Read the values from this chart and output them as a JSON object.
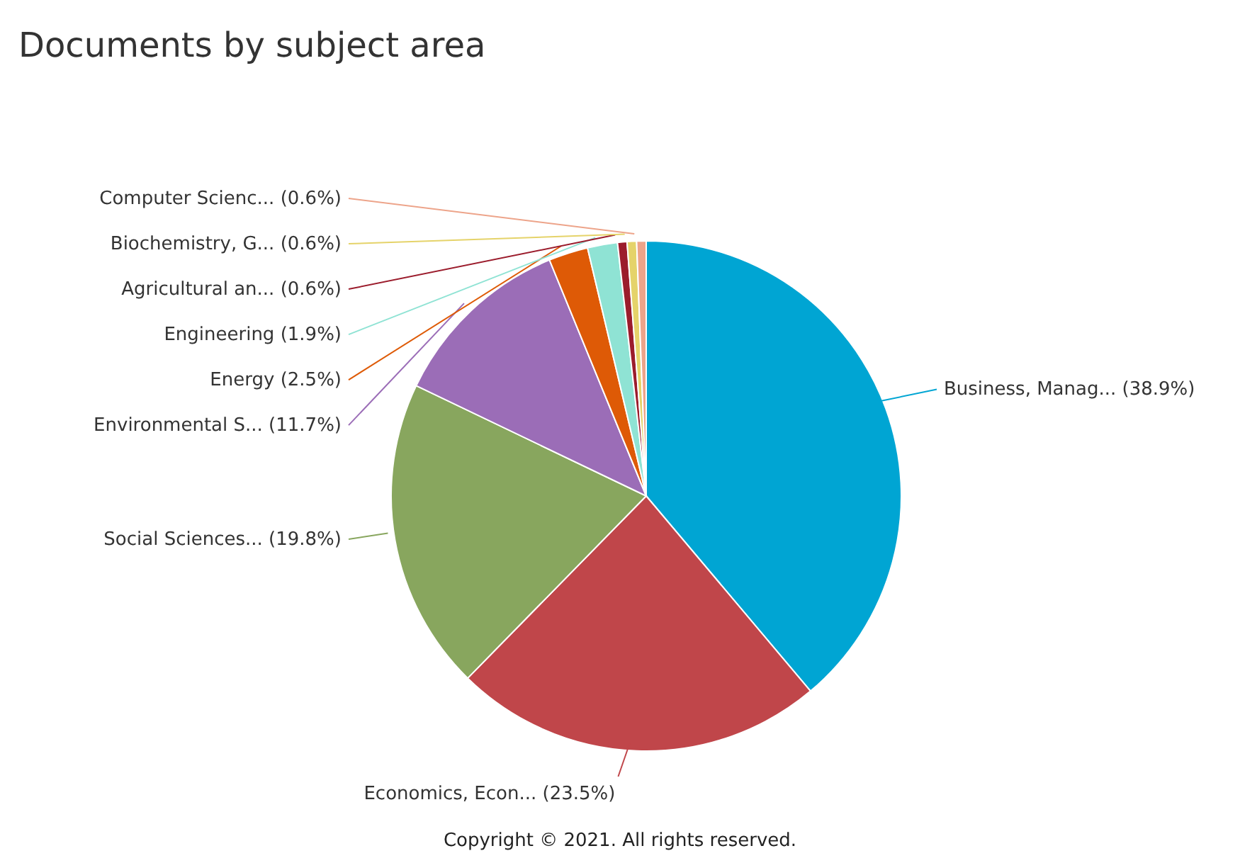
{
  "chart_data": {
    "type": "pie",
    "title": "Documents by subject area",
    "categories": [
      "Business, Manag...",
      "Economics, Econ...",
      "Social Sciences...",
      "Environmental S...",
      "Energy",
      "Engineering",
      "Agricultural an...",
      "Biochemistry, G...",
      "Computer Scienc..."
    ],
    "values": [
      38.9,
      23.5,
      19.8,
      11.7,
      2.5,
      1.9,
      0.6,
      0.6,
      0.6
    ],
    "colors": [
      "#00a5d3",
      "#c0464a",
      "#88a65e",
      "#9b6db7",
      "#de5a06",
      "#8fe3d4",
      "#9b1c2c",
      "#e5d36a",
      "#eda48a"
    ],
    "value_labels": [
      "(38.9%)",
      "(23.5%)",
      "(19.8%)",
      "(11.7%)",
      "(2.5%)",
      "(1.9%)",
      "(0.6%)",
      "(0.6%)",
      "(0.6%)"
    ],
    "annotations": [
      "Copyright © 2021. All rights reserved."
    ]
  }
}
